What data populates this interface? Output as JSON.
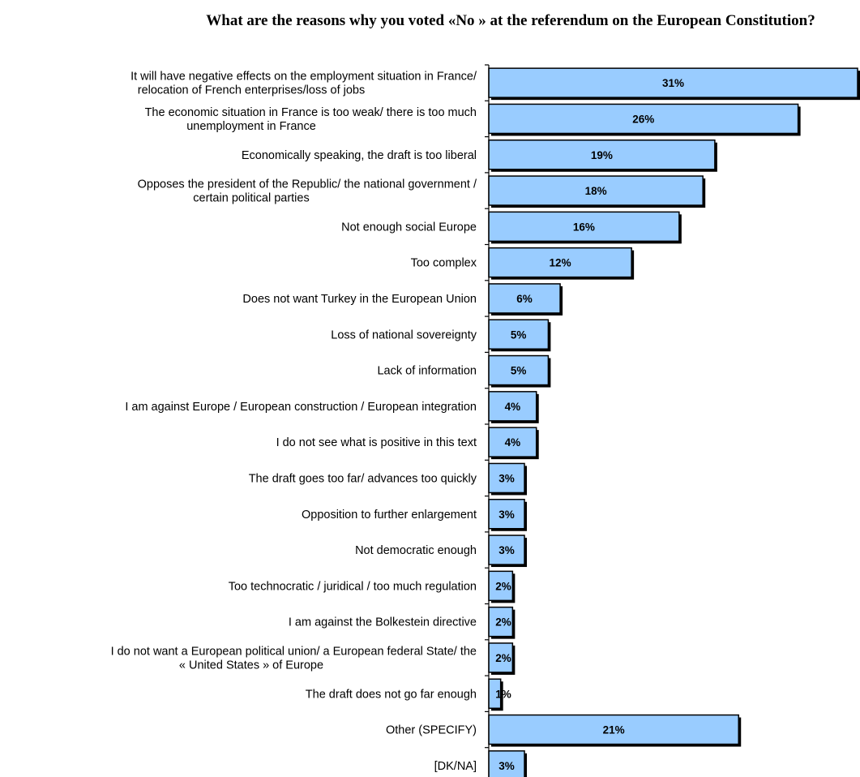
{
  "chart_data": {
    "type": "bar",
    "orientation": "horizontal",
    "title": "What are the reasons why you voted «No » at the referendum on the European Constitution?",
    "unit": "%",
    "bar_color": "#99ccff",
    "categories": [
      [
        "It will have negative effects on the employment situation in France/",
        "relocation of French enterprises/loss of jobs"
      ],
      [
        "The economic situation in France is too weak/ there is too much",
        "unemployment in France"
      ],
      [
        "Economically speaking, the draft is too liberal"
      ],
      [
        "Opposes the president of the Republic/ the national government /",
        "certain political parties"
      ],
      [
        "Not enough social Europe"
      ],
      [
        "Too complex"
      ],
      [
        "Does not want Turkey in the European Union"
      ],
      [
        "Loss of national sovereignty"
      ],
      [
        "Lack of information"
      ],
      [
        "I am against Europe / European construction / European integration"
      ],
      [
        "I do not see what is positive in this text"
      ],
      [
        "The draft goes too far/ advances too quickly"
      ],
      [
        "Opposition to further enlargement"
      ],
      [
        "Not democratic enough"
      ],
      [
        "Too technocratic / juridical / too much regulation"
      ],
      [
        "I am against the Bolkestein directive"
      ],
      [
        "I do not want a European political union/ a European federal State/ the",
        "« United States » of Europe"
      ],
      [
        "The draft does not go far enough"
      ],
      [
        "Other (SPECIFY)"
      ],
      [
        "[DK/NA]"
      ]
    ],
    "values": [
      31,
      26,
      19,
      18,
      16,
      12,
      6,
      5,
      5,
      4,
      4,
      3,
      3,
      3,
      2,
      2,
      2,
      1,
      21,
      3
    ],
    "value_labels": [
      "31%",
      "26%",
      "19%",
      "18%",
      "16%",
      "12%",
      "6%",
      "5%",
      "5%",
      "4%",
      "4%",
      "3%",
      "3%",
      "3%",
      "2%",
      "2%",
      "2%",
      "1%",
      "21%",
      "3%"
    ],
    "xlim": [
      0,
      31
    ],
    "grid": false,
    "legend": "none"
  }
}
